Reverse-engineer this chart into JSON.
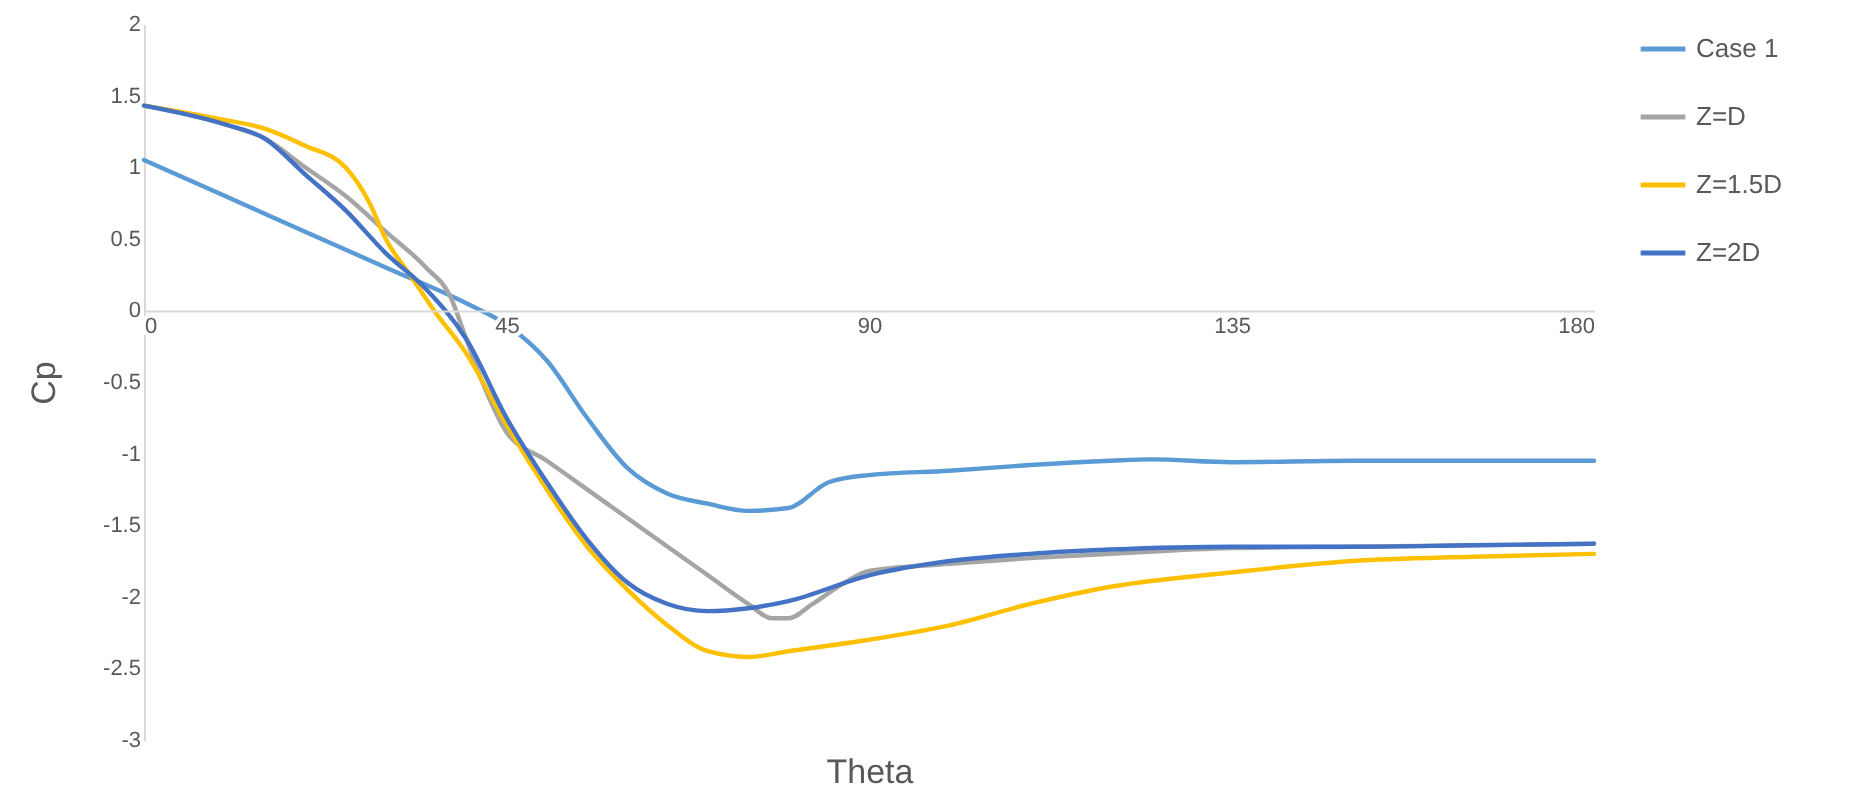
{
  "chart_data": {
    "type": "line",
    "xlabel": "Theta",
    "ylabel": "Cp",
    "xlim": [
      0,
      180
    ],
    "xticks": [
      0,
      45,
      90,
      135,
      180
    ],
    "ylim": [
      -3,
      2
    ],
    "yticks": [
      -3,
      -2.5,
      -2,
      -1.5,
      -1,
      -0.5,
      0,
      0.5,
      1,
      1.5,
      2
    ],
    "grid": false,
    "legend": "right",
    "marker": "none",
    "line_style": "solid",
    "series": [
      {
        "name": "Case 1",
        "color": "#5b9bd5",
        "x": [
          0,
          10,
          20,
          30,
          40,
          45,
          50,
          55,
          60,
          65,
          70,
          75,
          80,
          85,
          90,
          100,
          110,
          120,
          125,
          135,
          150,
          165,
          180
        ],
        "values": [
          1.05,
          0.8,
          0.55,
          0.3,
          0.05,
          -0.1,
          -0.35,
          -0.75,
          -1.1,
          -1.28,
          -1.35,
          -1.4,
          -1.38,
          -1.2,
          -1.15,
          -1.12,
          -1.08,
          -1.05,
          -1.04,
          -1.06,
          -1.05,
          -1.05,
          -1.05
        ]
      },
      {
        "name": "Z=D",
        "color": "#a5a5a5",
        "x": [
          0,
          10,
          15,
          20,
          25,
          30,
          35,
          38,
          40,
          42,
          45,
          50,
          55,
          60,
          65,
          70,
          75,
          78,
          80,
          83,
          87,
          90,
          100,
          110,
          120,
          135,
          150,
          180
        ],
        "values": [
          1.43,
          1.3,
          1.2,
          1.0,
          0.8,
          0.55,
          0.3,
          0.1,
          -0.2,
          -0.5,
          -0.85,
          -1.05,
          -1.25,
          -1.45,
          -1.65,
          -1.85,
          -2.05,
          -2.15,
          -2.15,
          -2.05,
          -1.9,
          -1.82,
          -1.77,
          -1.73,
          -1.7,
          -1.66,
          -1.65,
          -1.63
        ]
      },
      {
        "name": "Z=1.5D",
        "color": "#ffc000",
        "x": [
          0,
          10,
          15,
          20,
          25,
          28,
          30,
          33,
          36,
          40,
          45,
          50,
          55,
          60,
          65,
          70,
          75,
          80,
          90,
          100,
          110,
          120,
          135,
          150,
          165,
          180
        ],
        "values": [
          1.43,
          1.33,
          1.27,
          1.15,
          1.0,
          0.75,
          0.5,
          0.25,
          0.0,
          -0.3,
          -0.8,
          -1.25,
          -1.65,
          -1.95,
          -2.2,
          -2.38,
          -2.42,
          -2.38,
          -2.3,
          -2.2,
          -2.05,
          -1.93,
          -1.83,
          -1.75,
          -1.72,
          -1.7
        ]
      },
      {
        "name": "Z=2D",
        "color": "#4472c4",
        "x": [
          0,
          10,
          15,
          20,
          25,
          30,
          35,
          40,
          45,
          50,
          55,
          60,
          65,
          70,
          75,
          80,
          90,
          100,
          110,
          120,
          135,
          150,
          165,
          180
        ],
        "values": [
          1.43,
          1.3,
          1.2,
          0.95,
          0.7,
          0.4,
          0.15,
          -0.2,
          -0.75,
          -1.2,
          -1.6,
          -1.9,
          -2.05,
          -2.1,
          -2.08,
          -2.03,
          -1.85,
          -1.75,
          -1.7,
          -1.67,
          -1.65,
          -1.65,
          -1.64,
          -1.63
        ]
      }
    ]
  }
}
